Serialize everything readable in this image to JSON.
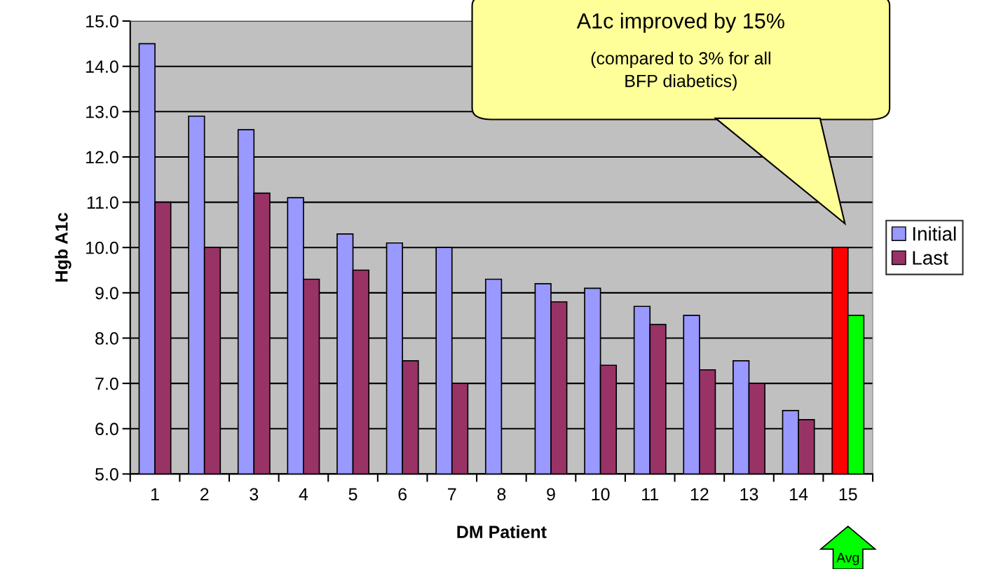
{
  "chart_data": {
    "type": "bar",
    "xlabel": "DM Patient",
    "ylabel": "Hgb A1c",
    "categories": [
      "1",
      "2",
      "3",
      "4",
      "5",
      "6",
      "7",
      "8",
      "9",
      "10",
      "11",
      "12",
      "13",
      "14",
      "15"
    ],
    "series": [
      {
        "name": "Initial",
        "color": "#9999ff",
        "colors": [
          "#9999ff",
          "#9999ff",
          "#9999ff",
          "#9999ff",
          "#9999ff",
          "#9999ff",
          "#9999ff",
          "#9999ff",
          "#9999ff",
          "#9999ff",
          "#9999ff",
          "#9999ff",
          "#9999ff",
          "#9999ff",
          "#ff0000"
        ],
        "values": [
          14.5,
          12.9,
          12.6,
          11.1,
          10.3,
          10.1,
          10.0,
          9.3,
          9.2,
          9.1,
          8.7,
          8.5,
          7.5,
          6.4,
          10.0
        ]
      },
      {
        "name": "Last",
        "color": "#993366",
        "colors": [
          "#993366",
          "#993366",
          "#993366",
          "#993366",
          "#993366",
          "#993366",
          "#993366",
          "#993366",
          "#993366",
          "#993366",
          "#993366",
          "#993366",
          "#993366",
          "#993366",
          "#00ff00"
        ],
        "values": [
          11.0,
          10.0,
          11.2,
          9.3,
          9.5,
          7.5,
          7.0,
          null,
          8.8,
          7.4,
          8.3,
          7.3,
          7.0,
          6.2,
          8.5
        ]
      }
    ],
    "ylim": [
      5,
      15
    ],
    "yticks": [
      {
        "value": 5,
        "label": "5.0"
      },
      {
        "value": 6,
        "label": "6.0"
      },
      {
        "value": 7,
        "label": "7.0"
      },
      {
        "value": 8,
        "label": "8.0"
      },
      {
        "value": 9,
        "label": "9.0"
      },
      {
        "value": 10,
        "label": "10.0"
      },
      {
        "value": 11,
        "label": "11.0"
      },
      {
        "value": 12,
        "label": "12.0"
      },
      {
        "value": 13,
        "label": "13.0"
      },
      {
        "value": 14,
        "label": "14.0"
      },
      {
        "value": 15,
        "label": "15.0"
      }
    ],
    "grid": "y",
    "legend": "right",
    "annotations": [
      "A1c improved by 15%",
      "(compared to 3% for all\nBFP diabetics)",
      "Avg"
    ]
  }
}
